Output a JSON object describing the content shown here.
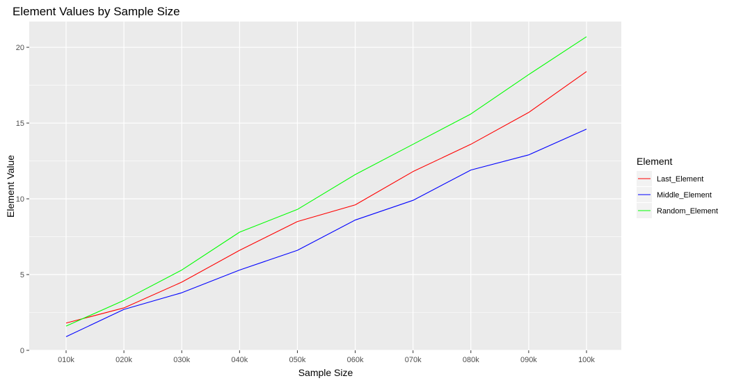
{
  "chart_data": {
    "type": "line",
    "title": "Element Values by Sample Size",
    "xlabel": "Sample Size",
    "ylabel": "Element Value",
    "categories": [
      "010k",
      "020k",
      "030k",
      "040k",
      "050k",
      "060k",
      "070k",
      "080k",
      "090k",
      "100k"
    ],
    "ylim": [
      0,
      21.7
    ],
    "yticks": [
      0,
      5,
      10,
      15,
      20
    ],
    "grid": true,
    "legend": {
      "title": "Element",
      "position": "right"
    },
    "series": [
      {
        "name": "Last_Element",
        "color": "#ff0000",
        "values": [
          1.8,
          2.8,
          4.5,
          6.6,
          8.5,
          9.6,
          11.8,
          13.6,
          15.7,
          18.4
        ]
      },
      {
        "name": "Middle_Element",
        "color": "#0000ff",
        "values": [
          0.9,
          2.7,
          3.8,
          5.3,
          6.6,
          8.6,
          9.9,
          11.9,
          12.9,
          14.6
        ]
      },
      {
        "name": "Random_Element",
        "color": "#00ff00",
        "values": [
          1.6,
          3.3,
          5.3,
          7.8,
          9.3,
          11.6,
          13.6,
          15.6,
          18.2,
          20.7
        ]
      }
    ]
  }
}
